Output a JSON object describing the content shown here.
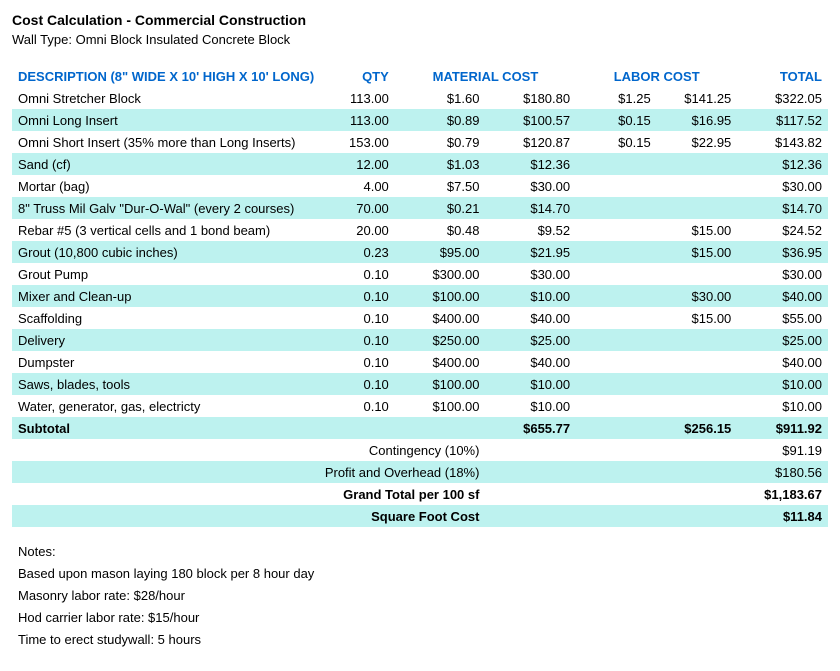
{
  "header": {
    "title": "Cost Calculation - Commercial Construction",
    "subtitle": "Wall Type: Omni Block Insulated Concrete Block"
  },
  "columns": {
    "desc": "DESCRIPTION (8\" WIDE X 10' HIGH X 10' LONG)",
    "qty": "QTY",
    "material": "MATERIAL COST",
    "labor": "LABOR COST",
    "total": "TOTAL"
  },
  "colors": {
    "cyan": "#bdf2ef",
    "header_text": "#0066cc"
  },
  "rows": [
    {
      "desc": "Omni Stretcher Block",
      "qty": "113.00",
      "mat_unit": "$1.60",
      "mat_ext": "$180.80",
      "lab_unit": "$1.25",
      "lab_ext": "$141.25",
      "total": "$322.05",
      "cyan": false
    },
    {
      "desc": "Omni Long Insert",
      "qty": "113.00",
      "mat_unit": "$0.89",
      "mat_ext": "$100.57",
      "lab_unit": "$0.15",
      "lab_ext": "$16.95",
      "total": "$117.52",
      "cyan": true
    },
    {
      "desc": "Omni Short Insert (35% more than Long Inserts)",
      "qty": "153.00",
      "mat_unit": "$0.79",
      "mat_ext": "$120.87",
      "lab_unit": "$0.15",
      "lab_ext": "$22.95",
      "total": "$143.82",
      "cyan": false
    },
    {
      "desc": "Sand (cf)",
      "qty": "12.00",
      "mat_unit": "$1.03",
      "mat_ext": "$12.36",
      "lab_unit": "",
      "lab_ext": "",
      "total": "$12.36",
      "cyan": true
    },
    {
      "desc": "Mortar (bag)",
      "qty": "4.00",
      "mat_unit": "$7.50",
      "mat_ext": "$30.00",
      "lab_unit": "",
      "lab_ext": "",
      "total": "$30.00",
      "cyan": false
    },
    {
      "desc": "8\" Truss Mil Galv \"Dur-O-Wal\" (every 2 courses)",
      "qty": "70.00",
      "mat_unit": "$0.21",
      "mat_ext": "$14.70",
      "lab_unit": "",
      "lab_ext": "",
      "total": "$14.70",
      "cyan": true
    },
    {
      "desc": "Rebar #5 (3 vertical cells and 1 bond beam)",
      "qty": "20.00",
      "mat_unit": "$0.48",
      "mat_ext": "$9.52",
      "lab_unit": "",
      "lab_ext": "$15.00",
      "total": "$24.52",
      "cyan": false
    },
    {
      "desc": "Grout (10,800 cubic inches)",
      "qty": "0.23",
      "mat_unit": "$95.00",
      "mat_ext": "$21.95",
      "lab_unit": "",
      "lab_ext": "$15.00",
      "total": "$36.95",
      "cyan": true
    },
    {
      "desc": "Grout Pump",
      "qty": "0.10",
      "mat_unit": "$300.00",
      "mat_ext": "$30.00",
      "lab_unit": "",
      "lab_ext": "",
      "total": "$30.00",
      "cyan": false
    },
    {
      "desc": "Mixer and Clean-up",
      "qty": "0.10",
      "mat_unit": "$100.00",
      "mat_ext": "$10.00",
      "lab_unit": "",
      "lab_ext": "$30.00",
      "total": "$40.00",
      "cyan": true
    },
    {
      "desc": "Scaffolding",
      "qty": "0.10",
      "mat_unit": "$400.00",
      "mat_ext": "$40.00",
      "lab_unit": "",
      "lab_ext": "$15.00",
      "total": "$55.00",
      "cyan": false
    },
    {
      "desc": "Delivery",
      "qty": "0.10",
      "mat_unit": "$250.00",
      "mat_ext": "$25.00",
      "lab_unit": "",
      "lab_ext": "",
      "total": "$25.00",
      "cyan": true
    },
    {
      "desc": "Dumpster",
      "qty": "0.10",
      "mat_unit": "$400.00",
      "mat_ext": "$40.00",
      "lab_unit": "",
      "lab_ext": "",
      "total": "$40.00",
      "cyan": false
    },
    {
      "desc": "Saws, blades, tools",
      "qty": "0.10",
      "mat_unit": "$100.00",
      "mat_ext": "$10.00",
      "lab_unit": "",
      "lab_ext": "",
      "total": "$10.00",
      "cyan": true
    },
    {
      "desc": "Water, generator, gas, electricty",
      "qty": "0.10",
      "mat_unit": "$100.00",
      "mat_ext": "$10.00",
      "lab_unit": "",
      "lab_ext": "",
      "total": "$10.00",
      "cyan": false
    }
  ],
  "subtotal": {
    "label": "Subtotal",
    "mat_ext": "$655.77",
    "lab_ext": "$256.15",
    "total": "$911.92"
  },
  "summary": [
    {
      "label": "Contingency (10%)",
      "total": "$91.19",
      "cyan": false,
      "bold": false
    },
    {
      "label": "Profit and Overhead (18%)",
      "total": "$180.56",
      "cyan": true,
      "bold": false
    },
    {
      "label": "Grand Total per 100 sf",
      "total": "$1,183.67",
      "cyan": false,
      "bold": true
    },
    {
      "label": "Square Foot Cost",
      "total": "$11.84",
      "cyan": true,
      "bold": true
    }
  ],
  "notes_header": "Notes:",
  "notes": [
    {
      "text": "Based upon mason laying 180 block per 8 hour day",
      "cyan": false
    },
    {
      "text": "Masonry labor rate: $28/hour",
      "cyan": true
    },
    {
      "text": "Hod carrier labor rate: $15/hour",
      "cyan": false
    },
    {
      "text": "Time to erect studywall: 5 hours",
      "cyan": true
    }
  ]
}
